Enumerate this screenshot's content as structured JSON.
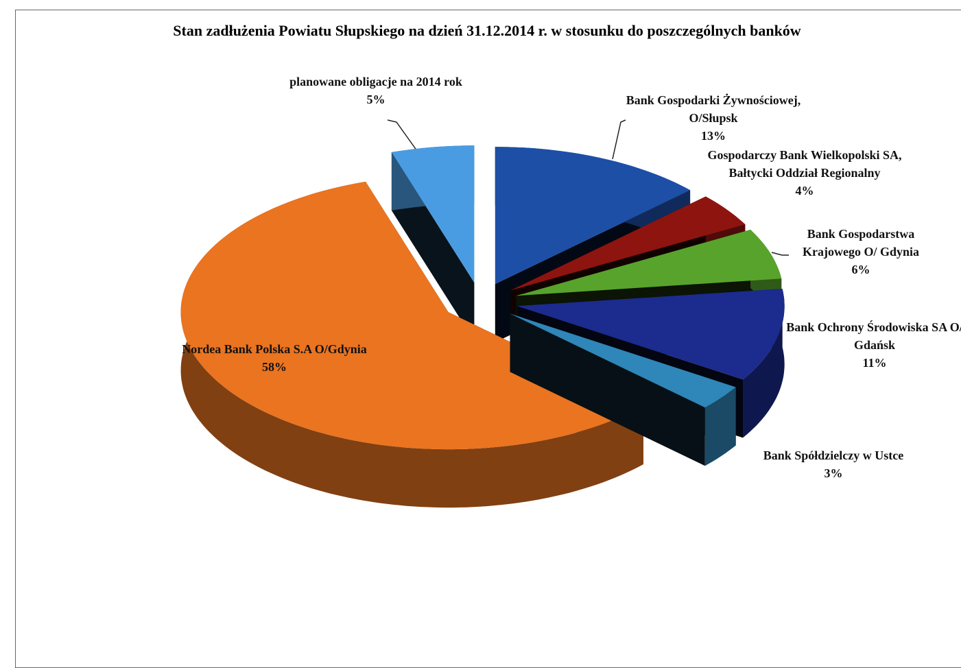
{
  "chart_data": {
    "type": "pie",
    "title": "Stan zadłużenia  Powiatu Słupskiego na dzień 31.12.2014 r. w stosunku do poszczególnych banków",
    "categories": [
      "Bank Gospodarki Żywnościowej, O/Słupsk",
      "Gospodarczy Bank Wielkopolski SA, Bałtycki Oddział Regionalny",
      "Bank Gospodarstwa Krajowego O/ Gdynia",
      "Bank Ochrony Środowiska SA O/ Gdańsk",
      "Bank Spółdzielczy w Ustce",
      "Nordea Bank Polska S.A O/Gdynia",
      "planowane obligacje na 2014 rok"
    ],
    "values": [
      13,
      4,
      6,
      11,
      3,
      58,
      5
    ],
    "value_labels": [
      "13%",
      "4%",
      "6%",
      "11%",
      "3%",
      "58%",
      "5%"
    ],
    "colors": [
      "#1d4fa6",
      "#8e1410",
      "#58a32c",
      "#1b2b8e",
      "#2f86b8",
      "#ea7420",
      "#4a9ce2"
    ]
  }
}
